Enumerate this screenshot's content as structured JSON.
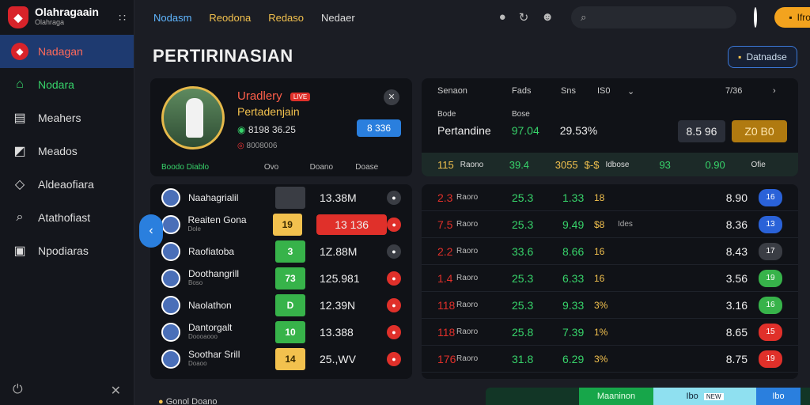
{
  "brand": {
    "name": "Olahragaain",
    "sub": "Olahraga"
  },
  "nav": [
    {
      "label": "Nadagan",
      "icon": "shield-icon"
    },
    {
      "label": "Nodara",
      "icon": "home-icon"
    },
    {
      "label": "Meahers",
      "icon": "book-icon"
    },
    {
      "label": "Meados",
      "icon": "chart-icon"
    },
    {
      "label": "Aldeaofiara",
      "icon": "tag-icon"
    },
    {
      "label": "Atathofiast",
      "icon": "search-icon"
    },
    {
      "label": "Npodiaras",
      "icon": "list-icon"
    }
  ],
  "tabs": [
    "Nodasm",
    "Reodona",
    "Redaso",
    "Nedaer"
  ],
  "search": {
    "placeholder": ""
  },
  "promo": "Ifrodate",
  "page": {
    "title": "PERTIRINASIAN",
    "button": "Datnadse"
  },
  "feature": {
    "title": "Uradlery",
    "badge": "LIVE",
    "sub": "Pertadenjain",
    "stat": "8198 36.25",
    "meta": "8008006",
    "pill": "8 336",
    "foot": [
      "Boodo Diablo",
      "Ovo",
      "Doano",
      "Doase"
    ]
  },
  "odds": {
    "head": [
      "Senaon",
      "Fads",
      "Sns",
      "IS0",
      "7/36"
    ],
    "lbl1": "Bode",
    "lbl2": "Bose",
    "row": [
      "Pertandine",
      "97.04",
      "29.53%"
    ],
    "b1": "8.5 96",
    "b2": "Z0 B0",
    "foot": [
      "115",
      "Raono",
      "39.4",
      "3055",
      "$-$",
      "Idbose",
      "93",
      "0.90",
      "Ofie"
    ]
  },
  "list": [
    {
      "name": "Naahagrialil",
      "sub": "",
      "box": "",
      "boxColor": "#3a3d44",
      "val": "13.38M",
      "ic": "#3a3d44"
    },
    {
      "name": "Reaiten Gona",
      "sub": "Dole",
      "box": "19",
      "boxColor": "#f2c14e",
      "val": "13 136",
      "ic": "#e0302a",
      "hl": true
    },
    {
      "name": "Raofiatoba",
      "sub": "",
      "box": "3",
      "boxColor": "#37b34a",
      "val": "1Z.88M",
      "ic": "#3a3d44"
    },
    {
      "name": "Doothangrill",
      "sub": "Boso",
      "box": "73",
      "boxColor": "#37b34a",
      "val": "125.981",
      "ic": "#e0302a"
    },
    {
      "name": "Naolathon",
      "sub": "",
      "box": "D",
      "boxColor": "#37b34a",
      "val": "12.39N",
      "ic": "#e0302a"
    },
    {
      "name": "Dantorgalt",
      "sub": "Doooaooo",
      "box": "10",
      "boxColor": "#37b34a",
      "val": "13.388",
      "ic": "#e0302a"
    },
    {
      "name": "Soothar Srill",
      "sub": "Doaoo",
      "box": "14",
      "boxColor": "#f2c14e",
      "val": "25.,WV",
      "ic": "#e0302a"
    }
  ],
  "table": [
    {
      "a": "2.3",
      "u": "Raoro",
      "b": "25.3",
      "c": "1.33",
      "d": "18",
      "e": "",
      "v": "8.90",
      "p": "16",
      "pc": "#2a62d8",
      "ac": "#e0302a"
    },
    {
      "a": "7.5",
      "u": "Raoro",
      "b": "25.3",
      "c": "9.49",
      "d": "$8",
      "e": "Ides",
      "v": "8.36",
      "p": "13",
      "pc": "#2a62d8",
      "ac": "#e0302a"
    },
    {
      "a": "2.2",
      "u": "Raoro",
      "b": "33.6",
      "c": "8.66",
      "d": "16",
      "e": "",
      "v": "8.43",
      "p": "17",
      "pc": "#3a3d44",
      "ac": "#e0302a"
    },
    {
      "a": "1.4",
      "u": "Raoro",
      "b": "25.3",
      "c": "6.33",
      "d": "16",
      "e": "",
      "v": "3.56",
      "p": "19",
      "pc": "#37b34a",
      "ac": "#e0302a"
    },
    {
      "a": "118",
      "u": "Raoro",
      "b": "25.3",
      "c": "9.33",
      "d": "3%",
      "e": "",
      "v": "3.16",
      "p": "16",
      "pc": "#37b34a",
      "ac": "#e0302a"
    },
    {
      "a": "118",
      "u": "Raoro",
      "b": "25.8",
      "c": "7.39",
      "d": "1%",
      "e": "",
      "v": "8.65",
      "p": "15",
      "pc": "#e0302a",
      "ac": "#e0302a"
    },
    {
      "a": "176",
      "u": "Raoro",
      "b": "31.8",
      "c": "6.29",
      "d": "3%",
      "e": "",
      "v": "8.75",
      "p": "19",
      "pc": "#e0302a",
      "ac": "#e0302a"
    }
  ],
  "bottom": {
    "label": "Gonol Doano",
    "b1": "Maaninon",
    "b2": "Ibo",
    "b2tag": "NEW",
    "b3": "Ibo"
  }
}
